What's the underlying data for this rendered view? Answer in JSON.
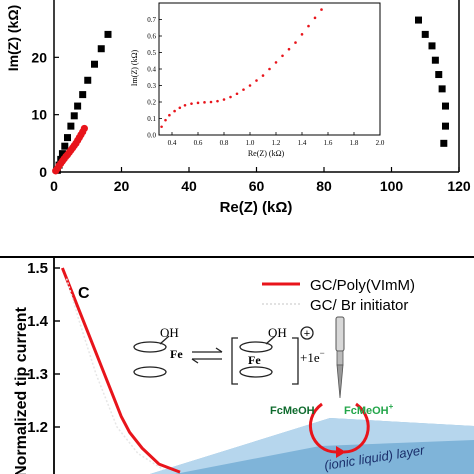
{
  "chart_data": [
    {
      "type": "scatter",
      "xlabel": "Re(Z) (kΩ)",
      "ylabel": "Im(Z) (kΩ)",
      "xlim": [
        0,
        120
      ],
      "ylim": [
        0,
        30
      ],
      "x_ticks": [
        "0",
        "20",
        "40",
        "60",
        "80",
        "100",
        "120"
      ],
      "y_ticks": [
        "0",
        "10",
        "20"
      ],
      "series": [
        {
          "color": "#000000",
          "marker": "square",
          "points": [
            [
              1,
              0.3
            ],
            [
              1.5,
              1.2
            ],
            [
              2,
              2.2
            ],
            [
              2.5,
              3.2
            ],
            [
              3.2,
              4.5
            ],
            [
              4,
              6
            ],
            [
              5,
              8
            ],
            [
              6,
              9.8
            ],
            [
              7,
              11.5
            ],
            [
              8.5,
              13.5
            ],
            [
              10,
              16
            ],
            [
              12,
              18.8
            ],
            [
              14,
              21.5
            ],
            [
              16,
              24
            ]
          ]
        },
        {
          "color": "#000000",
          "marker": "square",
          "points": [
            [
              108,
              26.5
            ],
            [
              110,
              24
            ],
            [
              112,
              22
            ],
            [
              113,
              19.5
            ],
            [
              114,
              17
            ],
            [
              115,
              14.5
            ],
            [
              116,
              11.5
            ],
            [
              116,
              8
            ],
            [
              115.5,
              5
            ]
          ]
        },
        {
          "color": "#e8141b",
          "marker": "circle",
          "points": [
            [
              0.5,
              0.2
            ],
            [
              1,
              0.6
            ],
            [
              1.5,
              1.1
            ],
            [
              2,
              1.5
            ],
            [
              2.5,
              1.9
            ],
            [
              3,
              2.3
            ],
            [
              3.5,
              2.7
            ],
            [
              4,
              3
            ],
            [
              4.5,
              3.4
            ],
            [
              5,
              3.8
            ],
            [
              5.5,
              4.2
            ],
            [
              6,
              4.6
            ],
            [
              6.5,
              5
            ],
            [
              7,
              5.5
            ],
            [
              7.5,
              6
            ],
            [
              8,
              6.5
            ],
            [
              8.5,
              7
            ],
            [
              9,
              7.6
            ]
          ]
        }
      ]
    },
    {
      "type": "scatter",
      "xlabel": "Re(Z) (kΩ)",
      "ylabel": "Im(Z) (kΩ)",
      "xlim": [
        0.3,
        2.0
      ],
      "ylim": [
        0,
        0.8
      ],
      "x_ticks": [
        "0.4",
        "0.6",
        "0.8",
        "1.0",
        "1.2",
        "1.4",
        "1.6",
        "1.8",
        "2.0"
      ],
      "y_ticks": [
        "0.0",
        "0.1",
        "0.2",
        "0.3",
        "0.4",
        "0.5",
        "0.6",
        "0.7"
      ],
      "series": [
        {
          "color": "#e8141b",
          "marker": "circle",
          "points": [
            [
              0.32,
              0.05
            ],
            [
              0.35,
              0.09
            ],
            [
              0.38,
              0.12
            ],
            [
              0.42,
              0.145
            ],
            [
              0.46,
              0.165
            ],
            [
              0.5,
              0.18
            ],
            [
              0.55,
              0.19
            ],
            [
              0.6,
              0.195
            ],
            [
              0.65,
              0.198
            ],
            [
              0.7,
              0.2
            ],
            [
              0.75,
              0.205
            ],
            [
              0.8,
              0.215
            ],
            [
              0.85,
              0.23
            ],
            [
              0.9,
              0.25
            ],
            [
              0.95,
              0.275
            ],
            [
              1.0,
              0.3
            ],
            [
              1.05,
              0.33
            ],
            [
              1.1,
              0.36
            ],
            [
              1.15,
              0.4
            ],
            [
              1.2,
              0.44
            ],
            [
              1.25,
              0.48
            ],
            [
              1.3,
              0.52
            ],
            [
              1.35,
              0.56
            ],
            [
              1.4,
              0.61
            ],
            [
              1.45,
              0.66
            ],
            [
              1.5,
              0.71
            ],
            [
              1.55,
              0.76
            ],
            [
              1.6,
              0.81
            ]
          ]
        }
      ]
    },
    {
      "type": "line",
      "panel_label": "C",
      "ylabel": "Normalized tip current",
      "y_ticks": [
        "1.2",
        "1.3",
        "1.4",
        "1.5"
      ],
      "ylim": [
        1.1,
        1.5
      ],
      "xlim": [
        0,
        10
      ],
      "legend_position": "top-right",
      "series": [
        {
          "name": "GC/Poly(VImM)",
          "color": "#e8141b",
          "points": [
            [
              0.2,
              1.5
            ],
            [
              0.4,
              1.46
            ],
            [
              0.6,
              1.42
            ],
            [
              0.8,
              1.38
            ],
            [
              1.0,
              1.34
            ],
            [
              1.2,
              1.3
            ],
            [
              1.4,
              1.26
            ],
            [
              1.6,
              1.22
            ],
            [
              1.8,
              1.19
            ],
            [
              2.1,
              1.16
            ],
            [
              2.5,
              1.13
            ],
            [
              3.0,
              1.115
            ]
          ]
        },
        {
          "name": "GC/ Br initiator",
          "color": "#e6e6e6",
          "points": [
            [
              0.3,
              1.48
            ],
            [
              0.6,
              1.4
            ],
            [
              1.0,
              1.3
            ],
            [
              1.5,
              1.2
            ],
            [
              2.0,
              1.15
            ],
            [
              2.6,
              1.12
            ]
          ]
        }
      ]
    }
  ],
  "scheme": {
    "oh_left": "OH",
    "oh_right": "OH",
    "fe_left": "Fe",
    "fe_right": "Fe",
    "charge_plus": "+",
    "electron": "+1e",
    "electron_sign": "−",
    "fcmeoh": "FcMeOH",
    "fcmeoh_plus": "FcMeOH",
    "fcmeoh_plus_sup": "+",
    "layer_label": "(ionic liquid) layer"
  }
}
